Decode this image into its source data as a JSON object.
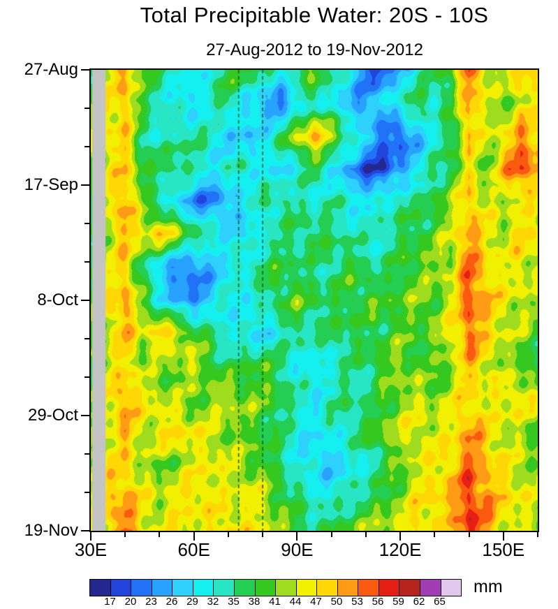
{
  "title": "Total Precipitable Water: 20S - 10S",
  "subtitle": "27-Aug-2012 to 19-Nov-2012",
  "colorbar": {
    "unit_label": "mm",
    "tick_labels": [
      "17",
      "20",
      "23",
      "26",
      "29",
      "32",
      "35",
      "38",
      "41",
      "44",
      "47",
      "50",
      "53",
      "56",
      "59",
      "62",
      "65"
    ]
  },
  "axes": {
    "y_ticks": [
      {
        "label": "27-Aug",
        "day": 0
      },
      {
        "label": "17-Sep",
        "day": 21
      },
      {
        "label": "8-Oct",
        "day": 42
      },
      {
        "label": "29-Oct",
        "day": 63
      },
      {
        "label": "19-Nov",
        "day": 84
      }
    ],
    "x_ticks": [
      {
        "label": "30E",
        "lon": 30
      },
      {
        "label": "60E",
        "lon": 60
      },
      {
        "label": "90E",
        "lon": 90
      },
      {
        "label": "120E",
        "lon": 120
      },
      {
        "label": "150E",
        "lon": 150
      }
    ],
    "x_minor_lons": [
      40,
      50,
      70,
      80,
      100,
      110,
      130,
      140,
      160
    ],
    "y_minor_days": [
      7,
      14,
      28,
      35,
      49,
      56,
      70,
      77
    ],
    "lon_range": [
      30,
      160
    ],
    "day_range": [
      0,
      84
    ]
  },
  "chart_data": {
    "type": "heatmap",
    "title": "Total Precipitable Water: 20S - 10S",
    "date_range": "27-Aug-2012 to 19-Nov-2012",
    "units": "mm",
    "y_date_ticks": [
      "27-Aug",
      "17-Sep",
      "8-Oct",
      "29-Oct",
      "19-Nov"
    ],
    "x_lons_deg_east": [
      30,
      35,
      40,
      45,
      50,
      55,
      60,
      65,
      70,
      75,
      80,
      85,
      90,
      95,
      100,
      105,
      110,
      115,
      120,
      125,
      130,
      135,
      140,
      145,
      150,
      155,
      160
    ],
    "y_days_from_start": [
      0,
      6,
      12,
      18,
      24,
      30,
      36,
      42,
      48,
      54,
      60,
      66,
      72,
      78,
      84
    ],
    "levels_mm": [
      17,
      20,
      23,
      26,
      29,
      32,
      35,
      38,
      41,
      44,
      47,
      50,
      53,
      56,
      59,
      62,
      65
    ],
    "palette": [
      "#23278F",
      "#2144DC",
      "#2272F8",
      "#27A3FF",
      "#2ED1FB",
      "#14F0F0",
      "#28E6C3",
      "#23CE52",
      "#35C81E",
      "#A0DC1E",
      "#F0F000",
      "#FFD705",
      "#FF9B14",
      "#FA5A0F",
      "#E61E14",
      "#B4231E",
      "#A03CB4",
      "#E3C8EE"
    ],
    "values_mm": [
      [
        38,
        44,
        52,
        40,
        36,
        33,
        30,
        34,
        38,
        40,
        36,
        33,
        38,
        42,
        36,
        30,
        22,
        19,
        26,
        32,
        36,
        40,
        55,
        46,
        42,
        50,
        46
      ],
      [
        40,
        46,
        50,
        38,
        34,
        30,
        28,
        33,
        36,
        30,
        25,
        21,
        28,
        34,
        30,
        26,
        24,
        28,
        34,
        38,
        34,
        38,
        52,
        44,
        40,
        46,
        44
      ],
      [
        42,
        46,
        48,
        36,
        32,
        34,
        36,
        32,
        28,
        26,
        30,
        36,
        44,
        51,
        44,
        36,
        28,
        22,
        19,
        26,
        32,
        36,
        50,
        42,
        46,
        52,
        48
      ],
      [
        40,
        44,
        50,
        38,
        36,
        38,
        34,
        30,
        32,
        34,
        30,
        28,
        32,
        36,
        30,
        24,
        19,
        17,
        24,
        30,
        34,
        38,
        46,
        40,
        50,
        56,
        52
      ],
      [
        38,
        46,
        52,
        40,
        34,
        28,
        23,
        21,
        26,
        30,
        34,
        36,
        34,
        32,
        34,
        32,
        30,
        32,
        36,
        34,
        38,
        42,
        50,
        44,
        42,
        46,
        44
      ],
      [
        36,
        44,
        50,
        46,
        49,
        44,
        38,
        34,
        30,
        28,
        32,
        34,
        36,
        38,
        36,
        34,
        32,
        34,
        36,
        38,
        40,
        44,
        52,
        46,
        44,
        48,
        46
      ],
      [
        38,
        44,
        48,
        36,
        27,
        23,
        21,
        26,
        30,
        34,
        36,
        38,
        36,
        34,
        36,
        38,
        36,
        34,
        38,
        40,
        42,
        44,
        54,
        48,
        44,
        46,
        44
      ],
      [
        40,
        46,
        52,
        40,
        32,
        25,
        23,
        28,
        32,
        30,
        34,
        38,
        40,
        38,
        36,
        38,
        40,
        38,
        40,
        42,
        40,
        44,
        56,
        50,
        46,
        44,
        42
      ],
      [
        38,
        44,
        50,
        44,
        49,
        46,
        40,
        36,
        32,
        30,
        28,
        32,
        36,
        34,
        36,
        38,
        36,
        38,
        40,
        38,
        42,
        46,
        54,
        48,
        44,
        42,
        40
      ],
      [
        40,
        44,
        48,
        42,
        40,
        42,
        44,
        40,
        36,
        38,
        40,
        36,
        31,
        29,
        32,
        34,
        36,
        40,
        42,
        40,
        38,
        42,
        50,
        46,
        42,
        40,
        38
      ],
      [
        42,
        46,
        52,
        46,
        44,
        42,
        40,
        42,
        44,
        42,
        40,
        38,
        34,
        31,
        34,
        36,
        34,
        38,
        42,
        44,
        42,
        44,
        48,
        44,
        46,
        48,
        44
      ],
      [
        40,
        44,
        50,
        44,
        46,
        48,
        46,
        44,
        42,
        40,
        38,
        36,
        31,
        29,
        32,
        34,
        38,
        42,
        44,
        46,
        44,
        46,
        52,
        48,
        44,
        42,
        40
      ],
      [
        42,
        46,
        48,
        42,
        40,
        42,
        44,
        46,
        44,
        42,
        40,
        36,
        31,
        29,
        27,
        30,
        32,
        36,
        40,
        44,
        46,
        48,
        54,
        50,
        46,
        44,
        42
      ],
      [
        44,
        48,
        52,
        46,
        44,
        46,
        48,
        46,
        44,
        46,
        44,
        40,
        36,
        33,
        31,
        34,
        36,
        38,
        42,
        46,
        48,
        50,
        57,
        52,
        48,
        46,
        44
      ],
      [
        44,
        48,
        55,
        46,
        44,
        46,
        44,
        46,
        48,
        46,
        44,
        42,
        38,
        36,
        38,
        40,
        42,
        44,
        46,
        48,
        46,
        48,
        58,
        52,
        46,
        44,
        42
      ]
    ],
    "dashed_line_lons_deg_east": [
      73,
      80
    ],
    "dashed_line_color": "#0E5F1E",
    "missing_data": {
      "lon_range": [
        30.4,
        34.3
      ],
      "color": "#C4C4C4"
    },
    "render_texture_amp_mm": 2.6
  }
}
